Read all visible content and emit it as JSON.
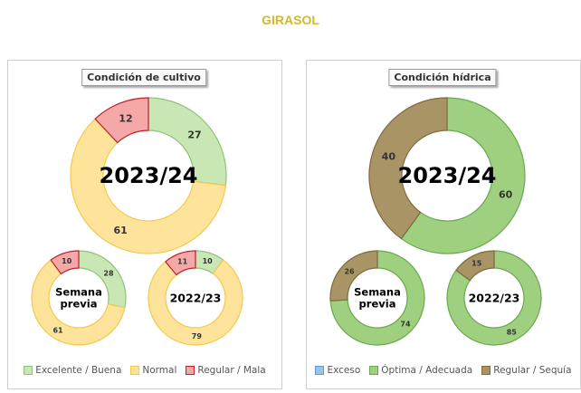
{
  "title": "GIRASOL",
  "colors": {
    "excelente": {
      "fill": "#c9e6b5",
      "stroke": "#8fc27a"
    },
    "normal": {
      "fill": "#fee39a",
      "stroke": "#f2c94f"
    },
    "regular_mala": {
      "fill": "#f4a9a8",
      "stroke": "#c0202b"
    },
    "exceso": {
      "fill": "#9dc3e6",
      "stroke": "#5b9bd5"
    },
    "optima": {
      "fill": "#9ed07f",
      "stroke": "#6aa84f"
    },
    "sequia": {
      "fill": "#a99466",
      "stroke": "#7f6a3a"
    }
  },
  "chart_data": [
    {
      "type": "donut-group",
      "title": "Condición de cultivo",
      "legend": [
        {
          "label": "Excelente / Buena",
          "color": "excelente"
        },
        {
          "label": "Normal",
          "color": "normal"
        },
        {
          "label": "Regular / Mala",
          "color": "regular_mala"
        }
      ],
      "charts": [
        {
          "center_label": "2023/24",
          "values": [
            27,
            61,
            12
          ],
          "labels": [
            "Excelente / Buena",
            "Normal",
            "Regular / Mala"
          ],
          "colors": [
            "excelente",
            "normal",
            "regular_mala"
          ]
        },
        {
          "center_label": "Semana previa",
          "values": [
            28,
            61,
            10
          ],
          "labels": [
            "Excelente / Buena",
            "Normal",
            "Regular / Mala"
          ],
          "colors": [
            "excelente",
            "normal",
            "regular_mala"
          ]
        },
        {
          "center_label": "2022/23",
          "values": [
            10,
            79,
            11
          ],
          "labels": [
            "Excelente / Buena",
            "Normal",
            "Regular / Mala"
          ],
          "colors": [
            "excelente",
            "normal",
            "regular_mala"
          ]
        }
      ]
    },
    {
      "type": "donut-group",
      "title": "Condición hídrica",
      "legend": [
        {
          "label": "Exceso",
          "color": "exceso"
        },
        {
          "label": "Óptima / Adecuada",
          "color": "optima"
        },
        {
          "label": "Regular / Sequía",
          "color": "sequia"
        }
      ],
      "charts": [
        {
          "center_label": "2023/24",
          "values": [
            60,
            40
          ],
          "labels": [
            "Óptima / Adecuada",
            "Regular / Sequía"
          ],
          "colors": [
            "optima",
            "sequia"
          ]
        },
        {
          "center_label": "Semana previa",
          "values": [
            74,
            26
          ],
          "labels": [
            "Óptima / Adecuada",
            "Regular / Sequía"
          ],
          "colors": [
            "optima",
            "sequia"
          ]
        },
        {
          "center_label": "2022/23",
          "values": [
            85,
            15
          ],
          "labels": [
            "Óptima / Adecuada",
            "Regular / Sequía"
          ],
          "colors": [
            "optima",
            "sequia"
          ]
        }
      ]
    }
  ]
}
